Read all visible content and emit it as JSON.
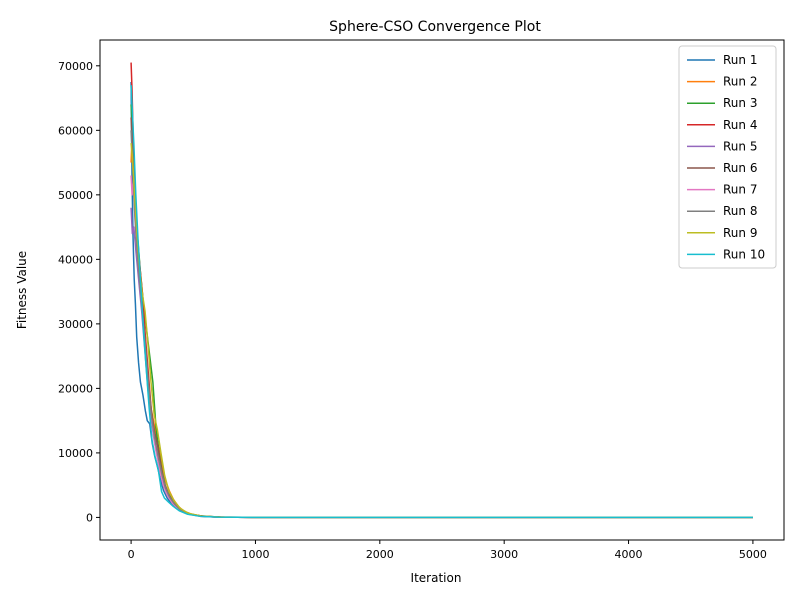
{
  "chart_data": {
    "type": "line",
    "title": "Sphere-CSO Convergence Plot",
    "xlabel": "Iteration",
    "ylabel": "Fitness Value",
    "xlim": [
      -250,
      5250
    ],
    "ylim": [
      -3500,
      74000
    ],
    "xticks": [
      0,
      1000,
      2000,
      3000,
      4000,
      5000
    ],
    "yticks": [
      0,
      10000,
      20000,
      30000,
      40000,
      50000,
      60000,
      70000
    ],
    "grid": false,
    "legend_position": "top-right",
    "series": [
      {
        "name": "Run 1",
        "color": "#1f77b4",
        "points": [
          [
            0,
            67500
          ],
          [
            8,
            52000
          ],
          [
            15,
            44000
          ],
          [
            25,
            37000
          ],
          [
            35,
            33000
          ],
          [
            45,
            28000
          ],
          [
            60,
            24000
          ],
          [
            75,
            21000
          ],
          [
            95,
            19000
          ],
          [
            115,
            16500
          ],
          [
            130,
            15000
          ],
          [
            150,
            14500
          ],
          [
            170,
            11500
          ],
          [
            190,
            9500
          ],
          [
            210,
            8000
          ],
          [
            235,
            6000
          ],
          [
            260,
            4200
          ],
          [
            290,
            3000
          ],
          [
            330,
            2000
          ],
          [
            380,
            1200
          ],
          [
            450,
            600
          ],
          [
            550,
            250
          ],
          [
            700,
            60
          ],
          [
            1000,
            10
          ],
          [
            5000,
            0
          ]
        ]
      },
      {
        "name": "Run 2",
        "color": "#ff7f0e",
        "points": [
          [
            0,
            55000
          ],
          [
            10,
            60000
          ],
          [
            20,
            52000
          ],
          [
            35,
            46000
          ],
          [
            55,
            40000
          ],
          [
            80,
            34000
          ],
          [
            105,
            28000
          ],
          [
            130,
            22000
          ],
          [
            160,
            17000
          ],
          [
            190,
            14000
          ],
          [
            220,
            11000
          ],
          [
            250,
            8000
          ],
          [
            280,
            5500
          ],
          [
            310,
            4000
          ],
          [
            340,
            2800
          ],
          [
            380,
            1700
          ],
          [
            430,
            900
          ],
          [
            500,
            400
          ],
          [
            600,
            150
          ],
          [
            750,
            40
          ],
          [
            1000,
            10
          ],
          [
            5000,
            0
          ]
        ]
      },
      {
        "name": "Run 3",
        "color": "#2ca02c",
        "points": [
          [
            0,
            64000
          ],
          [
            15,
            58000
          ],
          [
            30,
            51000
          ],
          [
            50,
            44000
          ],
          [
            75,
            38000
          ],
          [
            100,
            33000
          ],
          [
            125,
            29000
          ],
          [
            150,
            25000
          ],
          [
            175,
            21000
          ],
          [
            200,
            14000
          ],
          [
            225,
            10000
          ],
          [
            250,
            7000
          ],
          [
            280,
            4500
          ],
          [
            320,
            3000
          ],
          [
            360,
            2000
          ],
          [
            410,
            1100
          ],
          [
            480,
            500
          ],
          [
            580,
            180
          ],
          [
            720,
            50
          ],
          [
            1000,
            10
          ],
          [
            5000,
            0
          ]
        ]
      },
      {
        "name": "Run 4",
        "color": "#d62728",
        "points": [
          [
            0,
            70500
          ],
          [
            8,
            66000
          ],
          [
            18,
            58000
          ],
          [
            30,
            50000
          ],
          [
            45,
            45000
          ],
          [
            65,
            40000
          ],
          [
            90,
            35000
          ],
          [
            115,
            28000
          ],
          [
            140,
            22000
          ],
          [
            165,
            16000
          ],
          [
            190,
            13000
          ],
          [
            215,
            11000
          ],
          [
            245,
            6500
          ],
          [
            275,
            4500
          ],
          [
            310,
            3200
          ],
          [
            350,
            2100
          ],
          [
            400,
            1200
          ],
          [
            470,
            550
          ],
          [
            570,
            200
          ],
          [
            700,
            50
          ],
          [
            1000,
            10
          ],
          [
            5000,
            0
          ]
        ]
      },
      {
        "name": "Run 5",
        "color": "#9467bd",
        "points": [
          [
            0,
            48000
          ],
          [
            10,
            44000
          ],
          [
            22,
            45000
          ],
          [
            40,
            41000
          ],
          [
            60,
            37000
          ],
          [
            85,
            32000
          ],
          [
            110,
            26000
          ],
          [
            135,
            20000
          ],
          [
            160,
            15500
          ],
          [
            185,
            12000
          ],
          [
            210,
            9500
          ],
          [
            240,
            6800
          ],
          [
            270,
            4600
          ],
          [
            305,
            3100
          ],
          [
            345,
            2000
          ],
          [
            395,
            1100
          ],
          [
            460,
            500
          ],
          [
            560,
            180
          ],
          [
            700,
            50
          ],
          [
            1000,
            10
          ],
          [
            5000,
            0
          ]
        ]
      },
      {
        "name": "Run 6",
        "color": "#8c564b",
        "points": [
          [
            0,
            62000
          ],
          [
            12,
            57000
          ],
          [
            25,
            50000
          ],
          [
            42,
            44000
          ],
          [
            62,
            39000
          ],
          [
            85,
            34000
          ],
          [
            110,
            28000
          ],
          [
            135,
            22000
          ],
          [
            160,
            17000
          ],
          [
            185,
            13500
          ],
          [
            210,
            11500
          ],
          [
            240,
            8000
          ],
          [
            270,
            5200
          ],
          [
            305,
            3500
          ],
          [
            345,
            2300
          ],
          [
            395,
            1300
          ],
          [
            460,
            600
          ],
          [
            560,
            200
          ],
          [
            700,
            50
          ],
          [
            1000,
            10
          ],
          [
            5000,
            0
          ]
        ]
      },
      {
        "name": "Run 7",
        "color": "#e377c2",
        "points": [
          [
            0,
            53000
          ],
          [
            8,
            50000
          ],
          [
            18,
            52000
          ],
          [
            32,
            46000
          ],
          [
            50,
            41000
          ],
          [
            72,
            36000
          ],
          [
            98,
            30000
          ],
          [
            122,
            24000
          ],
          [
            148,
            18000
          ],
          [
            172,
            14000
          ],
          [
            198,
            10500
          ],
          [
            228,
            7500
          ],
          [
            258,
            5000
          ],
          [
            292,
            3400
          ],
          [
            332,
            2200
          ],
          [
            382,
            1250
          ],
          [
            450,
            560
          ],
          [
            550,
            190
          ],
          [
            700,
            50
          ],
          [
            1000,
            10
          ],
          [
            5000,
            0
          ]
        ]
      },
      {
        "name": "Run 8",
        "color": "#7f7f7f",
        "points": [
          [
            0,
            60000
          ],
          [
            12,
            55000
          ],
          [
            25,
            49000
          ],
          [
            42,
            43000
          ],
          [
            62,
            38000
          ],
          [
            86,
            33000
          ],
          [
            112,
            27000
          ],
          [
            138,
            21000
          ],
          [
            162,
            16000
          ],
          [
            188,
            12500
          ],
          [
            214,
            9800
          ],
          [
            244,
            7000
          ],
          [
            274,
            4700
          ],
          [
            308,
            3200
          ],
          [
            348,
            2100
          ],
          [
            398,
            1150
          ],
          [
            465,
            520
          ],
          [
            565,
            180
          ],
          [
            700,
            50
          ],
          [
            1000,
            10
          ],
          [
            5000,
            0
          ]
        ]
      },
      {
        "name": "Run 9",
        "color": "#bcbd22",
        "points": [
          [
            0,
            58000
          ],
          [
            10,
            56000
          ],
          [
            22,
            52000
          ],
          [
            40,
            46000
          ],
          [
            62,
            40000
          ],
          [
            88,
            35000
          ],
          [
            112,
            32000
          ],
          [
            135,
            27000
          ],
          [
            160,
            21000
          ],
          [
            185,
            16000
          ],
          [
            212,
            13500
          ],
          [
            240,
            10000
          ],
          [
            270,
            6500
          ],
          [
            305,
            4000
          ],
          [
            345,
            2600
          ],
          [
            395,
            1400
          ],
          [
            460,
            650
          ],
          [
            560,
            220
          ],
          [
            700,
            55
          ],
          [
            1000,
            10
          ],
          [
            5000,
            0
          ]
        ]
      },
      {
        "name": "Run 10",
        "color": "#17becf",
        "points": [
          [
            0,
            67000
          ],
          [
            10,
            63000
          ],
          [
            22,
            58000
          ],
          [
            38,
            50000
          ],
          [
            56,
            43000
          ],
          [
            78,
            36000
          ],
          [
            100,
            29000
          ],
          [
            122,
            23000
          ],
          [
            145,
            17000
          ],
          [
            168,
            12000
          ],
          [
            192,
            9500
          ],
          [
            218,
            7500
          ],
          [
            245,
            4000
          ],
          [
            268,
            3000
          ],
          [
            300,
            2400
          ],
          [
            340,
            1700
          ],
          [
            390,
            1000
          ],
          [
            455,
            480
          ],
          [
            555,
            170
          ],
          [
            700,
            45
          ],
          [
            1000,
            10
          ],
          [
            5000,
            0
          ]
        ]
      }
    ]
  }
}
